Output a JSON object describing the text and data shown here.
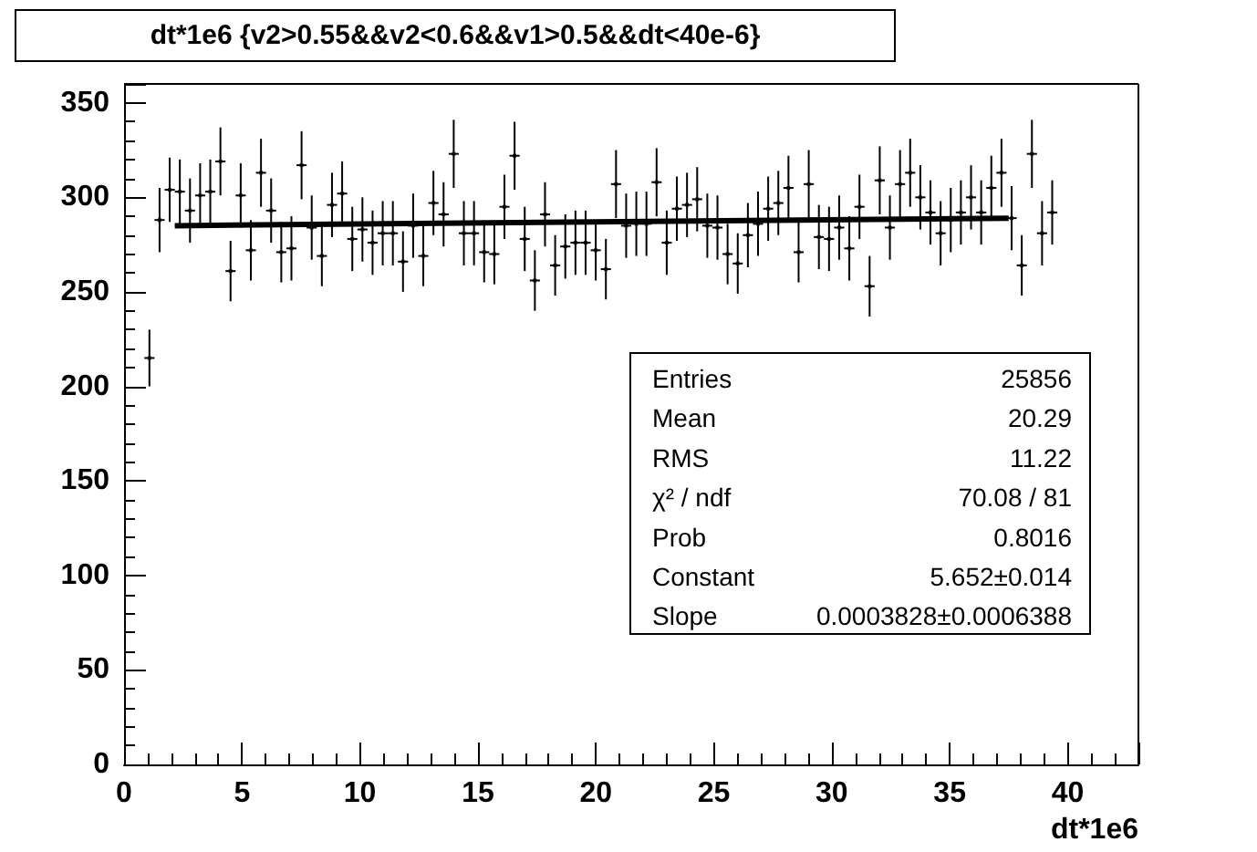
{
  "chart_data": {
    "type": "scatter",
    "title": "dt*1e6 {v2>0.55&&v2<0.6&&v1>0.5&&dt<40e-6}",
    "xlabel": "dt*1e6",
    "color": "#000000",
    "marker": "square",
    "x": [
      1.075,
      1.505,
      1.935,
      2.365,
      2.795,
      3.225,
      3.655,
      4.085,
      4.515,
      4.945,
      5.375,
      5.805,
      6.235,
      6.665,
      7.095,
      7.525,
      7.955,
      8.385,
      8.815,
      9.245,
      9.675,
      10.105,
      10.535,
      10.965,
      11.395,
      11.825,
      12.255,
      12.685,
      13.115,
      13.545,
      13.975,
      14.405,
      14.835,
      15.265,
      15.695,
      16.125,
      16.555,
      16.985,
      17.415,
      17.845,
      18.275,
      18.705,
      19.135,
      19.565,
      19.995,
      20.425,
      20.855,
      21.285,
      21.715,
      22.145,
      22.575,
      23.005,
      23.435,
      23.865,
      24.295,
      24.725,
      25.155,
      25.585,
      26.015,
      26.445,
      26.875,
      27.305,
      27.735,
      28.165,
      28.595,
      29.025,
      29.455,
      29.885,
      30.315,
      30.745,
      31.175,
      31.605,
      32.035,
      32.465,
      32.895,
      33.325,
      33.755,
      34.185,
      34.615,
      35.045,
      35.475,
      35.905,
      36.335,
      36.765,
      37.195,
      37.625,
      38.055,
      38.485,
      38.915,
      39.345
    ],
    "values": [
      215,
      288,
      304,
      303,
      293,
      301,
      303,
      319,
      261,
      301,
      272,
      313,
      293,
      271,
      273,
      317,
      284,
      269,
      296,
      302,
      278,
      283,
      276,
      281,
      281,
      266,
      285,
      269,
      297,
      291,
      323,
      281,
      281,
      271,
      270,
      295,
      322,
      278,
      256,
      291,
      264,
      274,
      276,
      276,
      272,
      262,
      307,
      285,
      286,
      286,
      308,
      276,
      294,
      296,
      299,
      285,
      284,
      270,
      265,
      280,
      286,
      294,
      297,
      305,
      271,
      307,
      279,
      278,
      284,
      273,
      295,
      253,
      309,
      284,
      307,
      313,
      300,
      292,
      281,
      288,
      292,
      300,
      292,
      305,
      313,
      289,
      264,
      323,
      281,
      292
    ],
    "errors": [
      15,
      17,
      17,
      17,
      17,
      17,
      17,
      18,
      16,
      17,
      16,
      18,
      17,
      16,
      17,
      18,
      17,
      16,
      17,
      17,
      17,
      17,
      17,
      17,
      17,
      16,
      17,
      16,
      17,
      17,
      18,
      17,
      17,
      16,
      16,
      17,
      18,
      17,
      16,
      17,
      16,
      17,
      17,
      17,
      16,
      16,
      18,
      17,
      17,
      17,
      18,
      17,
      17,
      17,
      17,
      17,
      17,
      16,
      16,
      17,
      17,
      17,
      17,
      17,
      16,
      18,
      17,
      17,
      17,
      17,
      17,
      16,
      18,
      17,
      18,
      18,
      17,
      17,
      17,
      17,
      17,
      17,
      17,
      17,
      18,
      17,
      16,
      18,
      17,
      17
    ],
    "xerrors": [
      0.215,
      0.215,
      0.215,
      0.215,
      0.215,
      0.215,
      0.215,
      0.215,
      0.215,
      0.215,
      0.215,
      0.215,
      0.215,
      0.215,
      0.215,
      0.215,
      0.215,
      0.215,
      0.215,
      0.215,
      0.215,
      0.215,
      0.215,
      0.215,
      0.215,
      0.215,
      0.215,
      0.215,
      0.215,
      0.215,
      0.215,
      0.215,
      0.215,
      0.215,
      0.215,
      0.215,
      0.215,
      0.215,
      0.215,
      0.215,
      0.215,
      0.215,
      0.215,
      0.215,
      0.215,
      0.215,
      0.215,
      0.215,
      0.215,
      0.215,
      0.215,
      0.215,
      0.215,
      0.215,
      0.215,
      0.215,
      0.215,
      0.215,
      0.215,
      0.215,
      0.215,
      0.215,
      0.215,
      0.215,
      0.215,
      0.215,
      0.215,
      0.215,
      0.215,
      0.215,
      0.215,
      0.215,
      0.215,
      0.215,
      0.215,
      0.215,
      0.215,
      0.215,
      0.215,
      0.215,
      0.215,
      0.215,
      0.215,
      0.215,
      0.215,
      0.215,
      0.215,
      0.215,
      0.215,
      0.215
    ],
    "series": [
      {
        "type": "line",
        "marker": "none",
        "x": [
          2.15,
          37.5
        ],
        "values": [
          285,
          289
        ],
        "color": "#000000"
      }
    ],
    "xlim": [
      0,
      43
    ],
    "xticks": [
      0,
      5,
      10,
      15,
      20,
      25,
      30,
      35,
      40
    ],
    "ylim": [
      0,
      360
    ],
    "yticks": [
      0,
      50,
      100,
      150,
      200,
      250,
      300,
      350
    ],
    "annotations": [
      "Entries",
      "25856",
      "Mean",
      "20.29",
      "RMS",
      "11.22",
      "χ² / ndf",
      "70.08 / 81",
      "Prob",
      "0.8016",
      "Constant",
      "5.652±0.014",
      "Slope",
      "0.0003828±0.0006388"
    ]
  }
}
